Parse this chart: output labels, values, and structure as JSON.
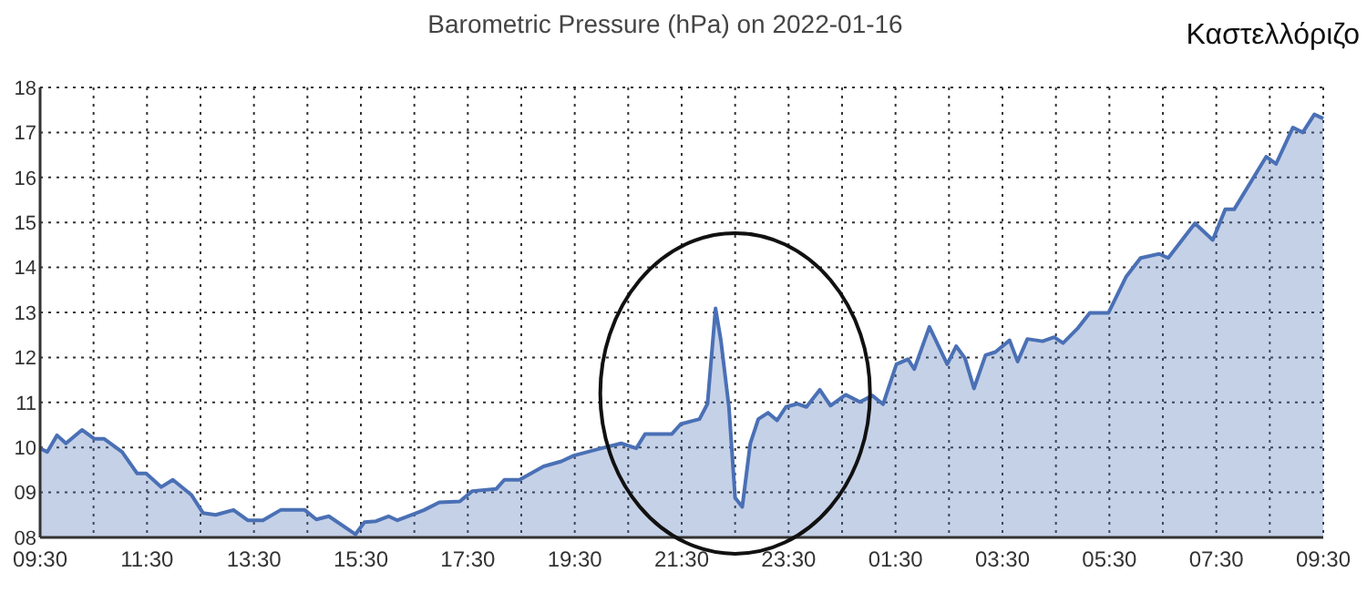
{
  "chart_data": {
    "type": "area",
    "title": "Barometric Pressure (hPa) on 2022-01-16",
    "annotations": [
      "Καστελλόριζο"
    ],
    "x": [
      "2022-01-16T09:30",
      "2022-01-16T09:38",
      "2022-01-16T09:49",
      "2022-01-16T09:59",
      "2022-01-16T10:17",
      "2022-01-16T10:31",
      "2022-01-16T10:42",
      "2022-01-16T11:02",
      "2022-01-16T11:19",
      "2022-01-16T11:29",
      "2022-01-16T11:46",
      "2022-01-16T11:59",
      "2022-01-16T12:20",
      "2022-01-16T12:33",
      "2022-01-16T12:47",
      "2022-01-16T13:07",
      "2022-01-16T13:23",
      "2022-01-16T13:40",
      "2022-01-16T14:00",
      "2022-01-16T14:27",
      "2022-01-16T14:40",
      "2022-01-16T14:54",
      "2022-01-16T15:24",
      "2022-01-16T15:34",
      "2022-01-16T15:47",
      "2022-01-16T16:01",
      "2022-01-16T16:11",
      "2022-01-16T16:28",
      "2022-01-16T16:41",
      "2022-01-16T16:58",
      "2022-01-16T17:21",
      "2022-01-16T17:35",
      "2022-01-16T18:02",
      "2022-01-16T18:11",
      "2022-01-16T18:28",
      "2022-01-16T18:55",
      "2022-01-16T19:15",
      "2022-01-16T19:29",
      "2022-01-16T19:56",
      "2022-01-16T20:22",
      "2022-01-16T20:39",
      "2022-01-16T20:49",
      "2022-01-16T21:19",
      "2022-01-16T21:29",
      "2022-01-16T21:50",
      "2022-01-16T21:59",
      "2022-01-16T22:08",
      "2022-01-16T22:14",
      "2022-01-16T22:23",
      "2022-01-16T22:30",
      "2022-01-16T22:38",
      "2022-01-16T22:47",
      "2022-01-16T22:56",
      "2022-01-16T23:07",
      "2022-01-16T23:17",
      "2022-01-16T23:27",
      "2022-01-16T23:40",
      "2022-01-16T23:50",
      "2022-01-17T00:05",
      "2022-01-17T00:17",
      "2022-01-17T00:34",
      "2022-01-17T00:50",
      "2022-01-17T01:04",
      "2022-01-17T01:16",
      "2022-01-17T01:31",
      "2022-01-17T01:44",
      "2022-01-17T01:51",
      "2022-01-17T02:08",
      "2022-01-17T02:28",
      "2022-01-17T02:38",
      "2022-01-17T02:48",
      "2022-01-17T02:58",
      "2022-01-17T03:11",
      "2022-01-17T03:22",
      "2022-01-17T03:38",
      "2022-01-17T03:47",
      "2022-01-17T03:58",
      "2022-01-17T04:15",
      "2022-01-17T04:28",
      "2022-01-17T04:38",
      "2022-01-17T04:55",
      "2022-01-17T05:08",
      "2022-01-17T05:29",
      "2022-01-17T05:49",
      "2022-01-17T06:05",
      "2022-01-17T06:26",
      "2022-01-17T06:36",
      "2022-01-17T07:06",
      "2022-01-17T07:26",
      "2022-01-17T07:40",
      "2022-01-17T07:50",
      "2022-01-17T08:26",
      "2022-01-17T08:37",
      "2022-01-17T08:56",
      "2022-01-17T09:07",
      "2022-01-17T09:20",
      "2022-01-17T09:30"
    ],
    "series": [
      {
        "color": "#4a70b5",
        "values": [
          9.98,
          9.9,
          10.27,
          10.09,
          10.39,
          10.19,
          10.19,
          9.9,
          9.42,
          9.42,
          9.12,
          9.28,
          8.94,
          8.54,
          8.5,
          8.61,
          8.38,
          8.38,
          8.61,
          8.61,
          8.4,
          8.47,
          8.07,
          8.34,
          8.36,
          8.47,
          8.38,
          8.51,
          8.61,
          8.78,
          8.8,
          9.03,
          9.08,
          9.28,
          9.28,
          9.58,
          9.69,
          9.82,
          9.96,
          10.09,
          9.98,
          10.3,
          10.3,
          10.52,
          10.63,
          10.97,
          13.09,
          12.38,
          10.9,
          8.88,
          8.68,
          10.09,
          10.63,
          10.77,
          10.6,
          10.9,
          10.97,
          10.9,
          11.28,
          10.93,
          11.17,
          11.01,
          11.15,
          10.96,
          11.85,
          11.96,
          11.74,
          12.68,
          11.85,
          12.25,
          11.98,
          11.31,
          12.05,
          12.12,
          12.38,
          11.91,
          12.41,
          12.36,
          12.45,
          12.32,
          12.66,
          12.99,
          12.99,
          13.8,
          14.21,
          14.3,
          14.21,
          14.98,
          14.61,
          15.29,
          15.29,
          16.46,
          16.3,
          17.11,
          17.0,
          17.4,
          17.31
        ]
      }
    ],
    "xlim": [
      "2022-01-16T09:30",
      "2022-01-17T09:30"
    ],
    "xticks": [
      {
        "value": "2022-01-16T09:30",
        "label": "09:30"
      },
      {
        "value": "2022-01-16T10:30",
        "label": null
      },
      {
        "value": "2022-01-16T11:30",
        "label": "11:30"
      },
      {
        "value": "2022-01-16T12:30",
        "label": null
      },
      {
        "value": "2022-01-16T13:30",
        "label": "13:30"
      },
      {
        "value": "2022-01-16T14:30",
        "label": null
      },
      {
        "value": "2022-01-16T15:30",
        "label": "15:30"
      },
      {
        "value": "2022-01-16T16:30",
        "label": null
      },
      {
        "value": "2022-01-16T17:30",
        "label": "17:30"
      },
      {
        "value": "2022-01-16T18:30",
        "label": null
      },
      {
        "value": "2022-01-16T19:30",
        "label": "19:30"
      },
      {
        "value": "2022-01-16T20:30",
        "label": null
      },
      {
        "value": "2022-01-16T21:30",
        "label": "21:30"
      },
      {
        "value": "2022-01-16T22:30",
        "label": null
      },
      {
        "value": "2022-01-16T23:30",
        "label": "23:30"
      },
      {
        "value": "2022-01-17T00:30",
        "label": null
      },
      {
        "value": "2022-01-17T01:30",
        "label": "01:30"
      },
      {
        "value": "2022-01-17T02:30",
        "label": null
      },
      {
        "value": "2022-01-17T03:30",
        "label": "03:30"
      },
      {
        "value": "2022-01-17T04:30",
        "label": null
      },
      {
        "value": "2022-01-17T05:30",
        "label": "05:30"
      },
      {
        "value": "2022-01-17T06:30",
        "label": null
      },
      {
        "value": "2022-01-17T07:30",
        "label": "07:30"
      },
      {
        "value": "2022-01-17T08:30",
        "label": null
      },
      {
        "value": "2022-01-17T09:30",
        "label": "09:30"
      }
    ],
    "ylim": [
      8,
      18
    ],
    "yticks": [
      {
        "value": 8,
        "label": "08"
      },
      {
        "value": 9,
        "label": "09"
      },
      10,
      11,
      12,
      13,
      14,
      15,
      16,
      17,
      18
    ],
    "grid": true,
    "marker": "none",
    "line_style": "solid"
  }
}
